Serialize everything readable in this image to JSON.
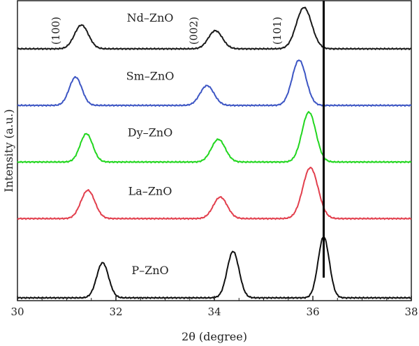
{
  "chart_data": {
    "type": "line",
    "xlabel": "2θ (degree)",
    "ylabel": "Intensity (a.u.)",
    "xlim": [
      30,
      38
    ],
    "xticks": [
      30,
      32,
      34,
      36,
      38
    ],
    "y_axis_ticks_labeled": false,
    "grid": false,
    "legend": "none",
    "reference_line_x": 36.22,
    "peak_labels": [
      {
        "text": "(100)",
        "x": 30.85
      },
      {
        "text": "(002)",
        "x": 33.65
      },
      {
        "text": "(101)",
        "x": 35.35
      }
    ],
    "series": [
      {
        "name": "Nd–ZnO",
        "color": "#1a1a1a",
        "baseline": 4.45,
        "peaks": [
          {
            "x": 31.3,
            "height": 0.42,
            "width": 0.2
          },
          {
            "x": 34.02,
            "height": 0.32,
            "width": 0.2
          },
          {
            "x": 35.82,
            "height": 0.73,
            "width": 0.22
          }
        ]
      },
      {
        "name": "Sm–ZnO",
        "color": "#3d56c4",
        "baseline": 3.45,
        "peaks": [
          {
            "x": 31.18,
            "height": 0.5,
            "width": 0.18
          },
          {
            "x": 33.85,
            "height": 0.35,
            "width": 0.2
          },
          {
            "x": 35.72,
            "height": 0.8,
            "width": 0.2
          }
        ]
      },
      {
        "name": "Dy–ZnO",
        "color": "#22d61f",
        "baseline": 2.45,
        "peaks": [
          {
            "x": 31.4,
            "height": 0.5,
            "width": 0.18
          },
          {
            "x": 34.08,
            "height": 0.4,
            "width": 0.2
          },
          {
            "x": 35.92,
            "height": 0.88,
            "width": 0.2
          }
        ]
      },
      {
        "name": "La–ZnO",
        "color": "#e23f4d",
        "baseline": 1.45,
        "peaks": [
          {
            "x": 31.43,
            "height": 0.5,
            "width": 0.2
          },
          {
            "x": 34.12,
            "height": 0.38,
            "width": 0.2
          },
          {
            "x": 35.95,
            "height": 0.9,
            "width": 0.22
          }
        ]
      },
      {
        "name": "P–ZnO",
        "color": "#111111",
        "baseline": 0.05,
        "peaks": [
          {
            "x": 31.73,
            "height": 0.62,
            "width": 0.17
          },
          {
            "x": 34.38,
            "height": 0.82,
            "width": 0.17
          },
          {
            "x": 36.22,
            "height": 1.08,
            "width": 0.16
          }
        ]
      }
    ]
  }
}
